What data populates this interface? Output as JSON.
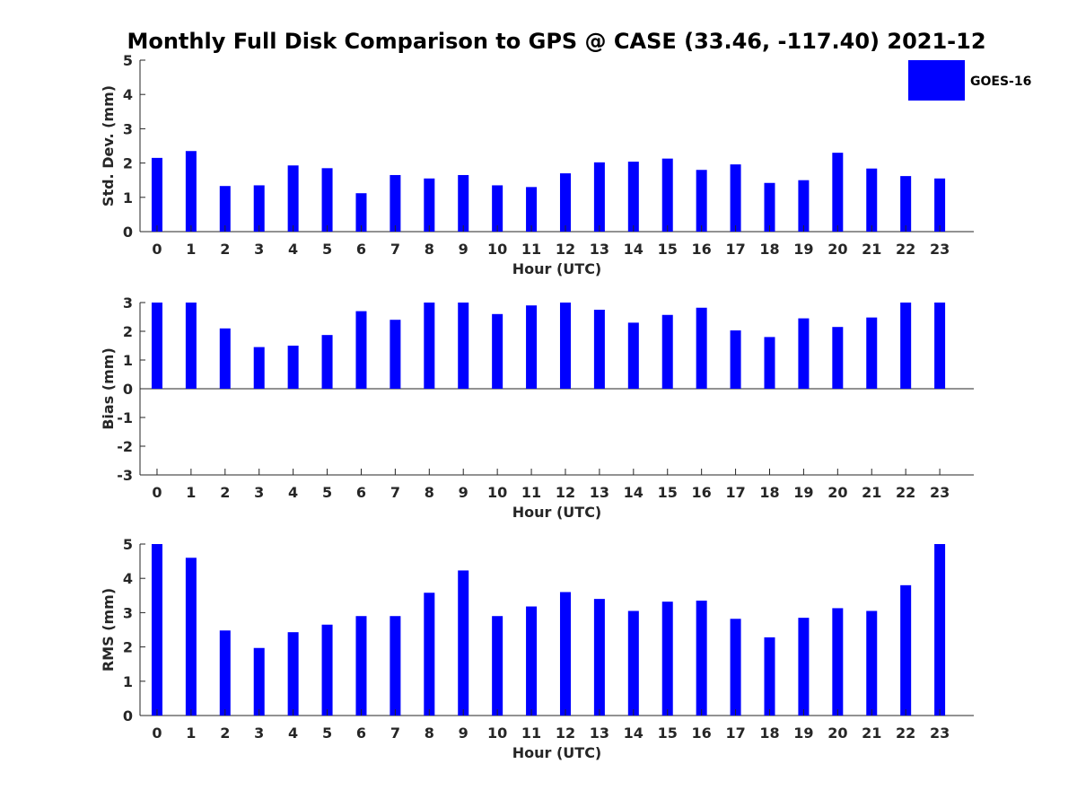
{
  "title": "Monthly Full Disk Comparison to GPS @ CASE (33.46, -117.40) 2021-12",
  "legend": {
    "label": "GOES-16",
    "color": "#0000ff",
    "position": "top-right"
  },
  "chart_data": [
    {
      "type": "bar",
      "name": "std",
      "categories": [
        "0",
        "1",
        "2",
        "3",
        "4",
        "5",
        "6",
        "7",
        "8",
        "9",
        "10",
        "11",
        "12",
        "13",
        "14",
        "15",
        "16",
        "17",
        "18",
        "19",
        "20",
        "21",
        "22",
        "23"
      ],
      "series": [
        {
          "name": "GOES-16",
          "values": [
            2.15,
            2.35,
            1.33,
            1.35,
            1.93,
            1.85,
            1.12,
            1.65,
            1.55,
            1.65,
            1.35,
            1.3,
            1.7,
            2.02,
            2.04,
            2.13,
            1.8,
            1.96,
            1.42,
            1.5,
            2.3,
            1.84,
            1.62,
            1.55
          ]
        }
      ],
      "xlabel": "Hour (UTC)",
      "ylabel": "Std. Dev. (mm)",
      "ylim": [
        0,
        5
      ],
      "yticks": [
        "0",
        "1",
        "2",
        "3",
        "4",
        "5"
      ],
      "grid": false
    },
    {
      "type": "bar",
      "name": "bias",
      "categories": [
        "0",
        "1",
        "2",
        "3",
        "4",
        "5",
        "6",
        "7",
        "8",
        "9",
        "10",
        "11",
        "12",
        "13",
        "14",
        "15",
        "16",
        "17",
        "18",
        "19",
        "20",
        "21",
        "22",
        "23"
      ],
      "series": [
        {
          "name": "GOES-16",
          "values": [
            3.0,
            3.0,
            2.1,
            1.45,
            1.5,
            1.87,
            2.7,
            2.4,
            3.0,
            3.0,
            2.6,
            2.9,
            3.0,
            2.75,
            2.3,
            2.57,
            2.82,
            2.03,
            1.8,
            2.45,
            2.15,
            2.48,
            3.0,
            3.0
          ]
        }
      ],
      "xlabel": "Hour (UTC)",
      "ylabel": "Bias (mm)",
      "ylim": [
        -3,
        3
      ],
      "yticks": [
        "-3",
        "-2",
        "-1",
        "0",
        "1",
        "2",
        "3"
      ],
      "grid": false
    },
    {
      "type": "bar",
      "name": "rms",
      "categories": [
        "0",
        "1",
        "2",
        "3",
        "4",
        "5",
        "6",
        "7",
        "8",
        "9",
        "10",
        "11",
        "12",
        "13",
        "14",
        "15",
        "16",
        "17",
        "18",
        "19",
        "20",
        "21",
        "22",
        "23"
      ],
      "series": [
        {
          "name": "GOES-16",
          "values": [
            5.0,
            4.6,
            2.48,
            1.97,
            2.43,
            2.65,
            2.9,
            2.9,
            3.58,
            4.23,
            2.9,
            3.18,
            3.6,
            3.4,
            3.05,
            3.32,
            3.35,
            2.82,
            2.28,
            2.85,
            3.13,
            3.05,
            3.8,
            5.0
          ]
        }
      ],
      "xlabel": "Hour (UTC)",
      "ylabel": "RMS (mm)",
      "ylim": [
        0,
        5
      ],
      "yticks": [
        "0",
        "1",
        "2",
        "3",
        "4",
        "5"
      ],
      "grid": false
    }
  ]
}
